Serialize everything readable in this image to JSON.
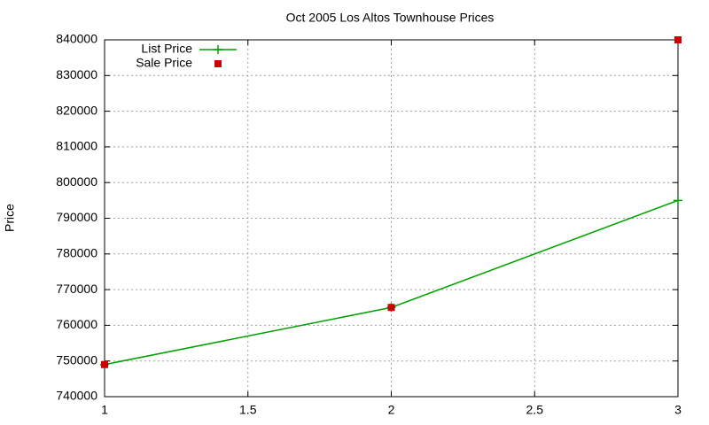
{
  "chart_data": {
    "type": "line",
    "title": "Oct 2005 Los Altos Townhouse Prices",
    "ylabel": "Price",
    "x": [
      1,
      2,
      3
    ],
    "series": [
      {
        "name": "List Price",
        "color": "#00a000",
        "style": "linespoints",
        "values": [
          749000,
          765000,
          795000
        ]
      },
      {
        "name": "Sale Price",
        "color": "#cc0000",
        "style": "points",
        "values": [
          749000,
          765000,
          840000
        ]
      }
    ],
    "xlim": [
      1,
      3
    ],
    "xticks": [
      1,
      1.5,
      2,
      2.5,
      3
    ],
    "ylim": [
      740000,
      840000
    ],
    "yticks": [
      740000,
      750000,
      760000,
      770000,
      780000,
      790000,
      800000,
      810000,
      820000,
      830000,
      840000
    ],
    "grid": true,
    "legend": "top-left"
  }
}
